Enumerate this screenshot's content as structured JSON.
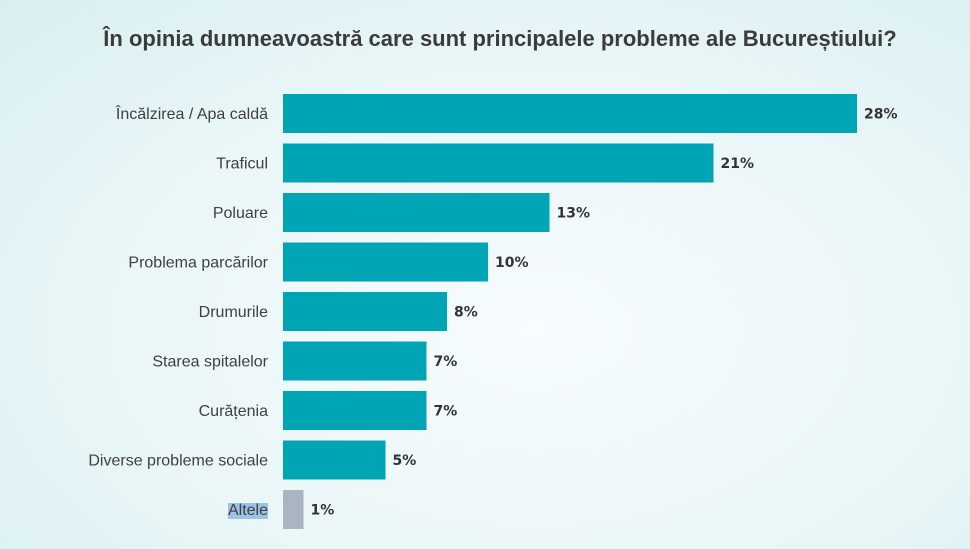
{
  "chart_data": {
    "type": "bar",
    "orientation": "horizontal",
    "title": "În opinia dumneavoastră care sunt principalele probleme ale Bucureștiului?",
    "categories": [
      "Încălzirea / Apa caldă",
      "Traficul",
      "Poluare",
      "Problema parcărilor",
      "Drumurile",
      "Starea spitalelor",
      "Curățenia",
      "Diverse probleme sociale",
      "Altele"
    ],
    "values": [
      28,
      21,
      13,
      10,
      8,
      7,
      7,
      5,
      1
    ],
    "value_labels": [
      "28%",
      "21%",
      "13%",
      "10%",
      "8%",
      "7%",
      "7%",
      "5%",
      "1%"
    ],
    "unit": "%",
    "colors": {
      "bar": "#00a5b5",
      "other_bar": "#a9b5c1",
      "highlight": "#9cc3e6"
    },
    "highlighted_category": "Altele",
    "grid": false,
    "legend": "none"
  }
}
